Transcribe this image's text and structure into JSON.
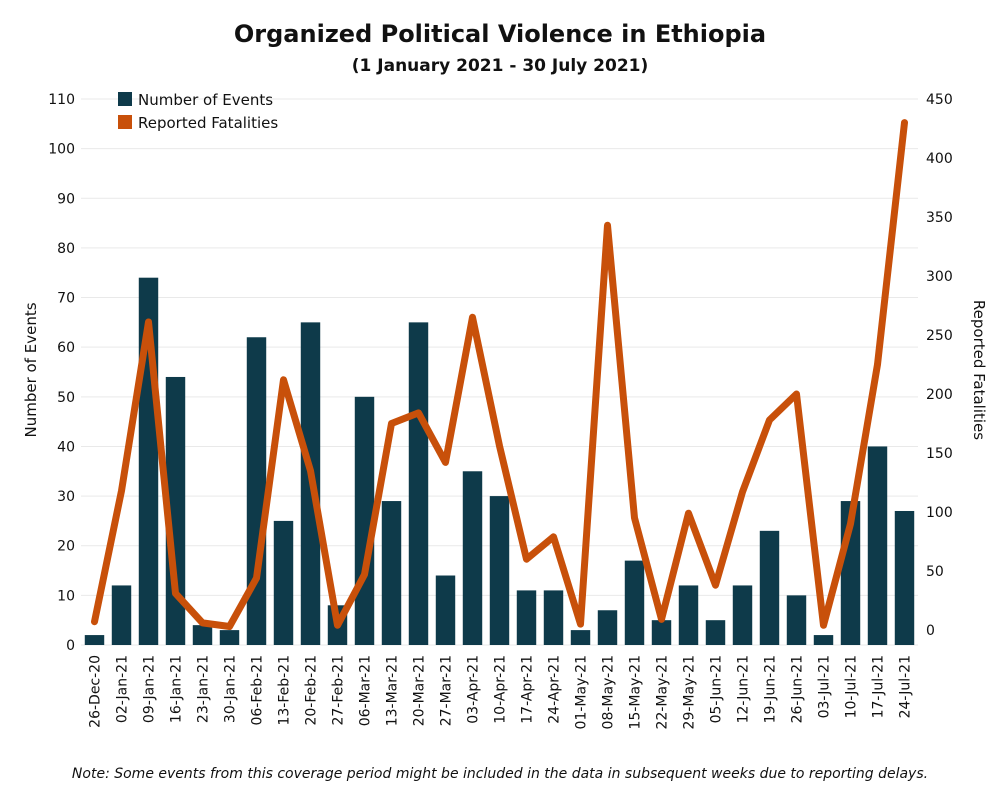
{
  "chart_data": {
    "type": "bar",
    "title": "Organized Political Violence in Ethiopia",
    "subtitle": "(1 January 2021 - 30 July 2021)",
    "categories": [
      "26-Dec-20",
      "02-Jan-21",
      "09-Jan-21",
      "16-Jan-21",
      "23-Jan-21",
      "30-Jan-21",
      "06-Feb-21",
      "13-Feb-21",
      "20-Feb-21",
      "27-Feb-21",
      "06-Mar-21",
      "13-Mar-21",
      "20-Mar-21",
      "27-Mar-21",
      "03-Apr-21",
      "10-Apr-21",
      "17-Apr-21",
      "24-Apr-21",
      "01-May-21",
      "08-May-21",
      "15-May-21",
      "22-May-21",
      "29-May-21",
      "05-Jun-21",
      "12-Jun-21",
      "19-Jun-21",
      "26-Jun-21",
      "03-Jul-21",
      "10-Jul-21",
      "17-Jul-21",
      "24-Jul-21"
    ],
    "series": [
      {
        "name": "Number of Events",
        "kind": "bar",
        "axis": "left",
        "color": "#0e3a4a",
        "values": [
          2,
          12,
          74,
          54,
          4,
          3,
          62,
          25,
          65,
          8,
          50,
          29,
          65,
          14,
          35,
          30,
          11,
          11,
          3,
          7,
          17,
          5,
          12,
          5,
          12,
          23,
          10,
          2,
          29,
          40,
          27
        ]
      },
      {
        "name": "Reported Fatalities",
        "kind": "line",
        "axis": "right",
        "color": "#c8500a",
        "values": [
          7,
          118,
          261,
          31,
          6,
          3,
          44,
          212,
          135,
          4,
          47,
          175,
          184,
          142,
          265,
          156,
          60,
          79,
          5,
          343,
          95,
          9,
          99,
          38,
          117,
          178,
          200,
          4,
          90,
          225,
          430
        ]
      }
    ],
    "y_left": {
      "label": "Number of Events",
      "min": 0,
      "max": 110,
      "ticks": [
        0,
        10,
        20,
        30,
        40,
        50,
        60,
        70,
        80,
        90,
        100,
        110
      ]
    },
    "y_right": {
      "label": "Reported Fatalities",
      "min": 0,
      "max": 450,
      "ticks": [
        0,
        50,
        100,
        150,
        200,
        250,
        300,
        350,
        400,
        450
      ]
    },
    "grid": true,
    "legend": "top-left"
  },
  "note": "Note: Some events from this coverage period might be included in the data in subsequent weeks due to reporting delays."
}
